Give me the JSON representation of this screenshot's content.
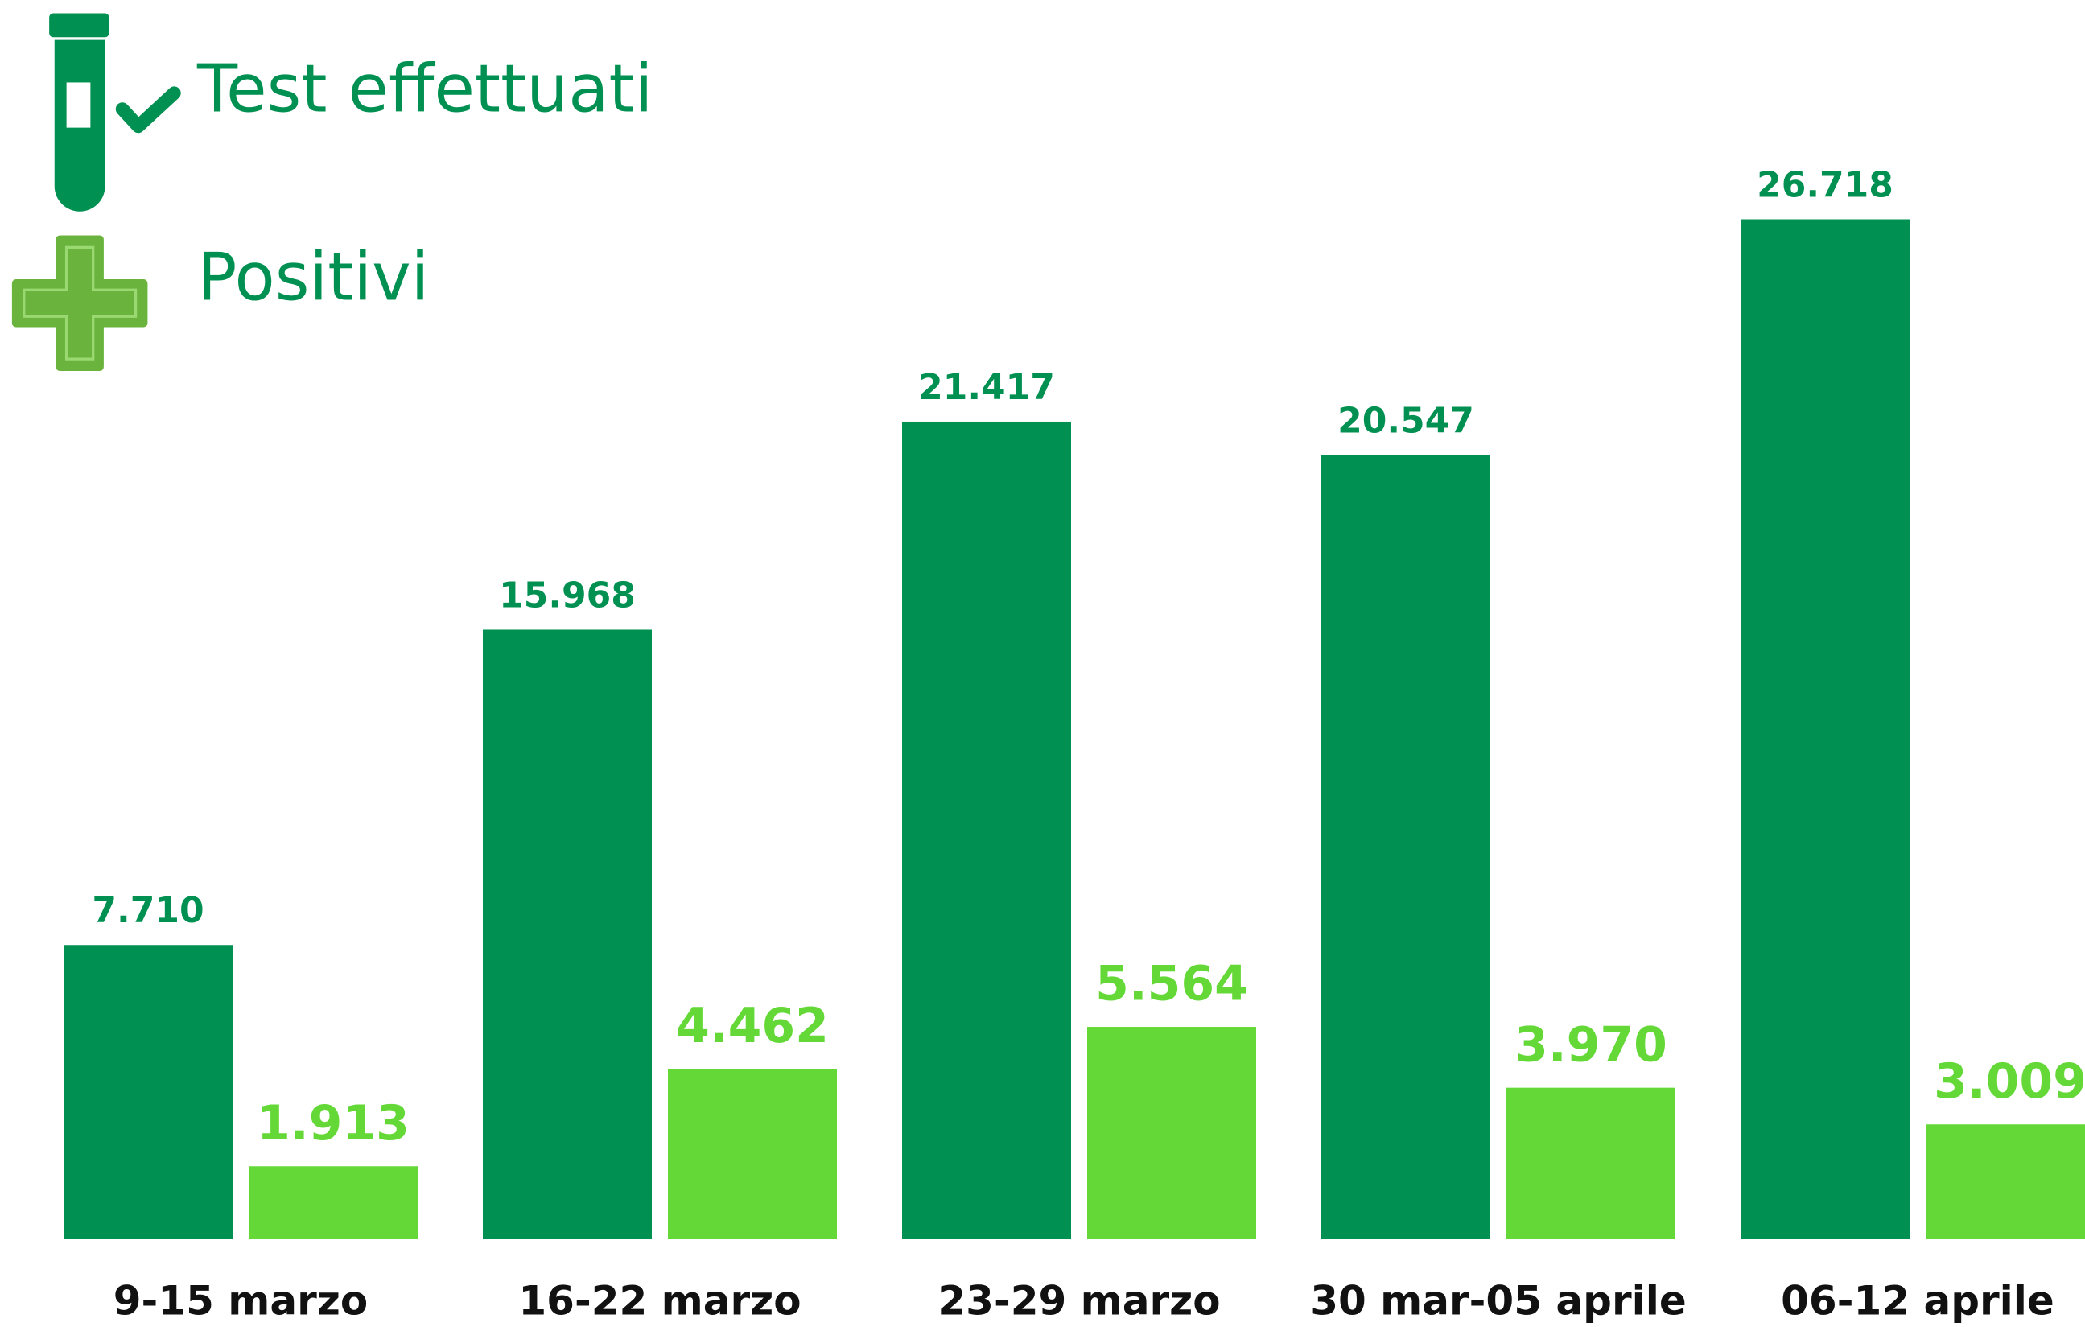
{
  "chart_data": {
    "type": "bar",
    "categories": [
      "9-15 marzo",
      "16-22 marzo",
      "23-29 marzo",
      "30 mar-05 aprile",
      "06-12 aprile"
    ],
    "series": [
      {
        "name": "Test effettuati",
        "color": "#009051",
        "values": [
          7710,
          15968,
          21417,
          20547,
          26718
        ],
        "value_labels": [
          "7.710",
          "15.968",
          "21.417",
          "20.547",
          "26.718"
        ]
      },
      {
        "name": "Positivi",
        "color": "#63d836",
        "values": [
          1913,
          4462,
          5564,
          3970,
          3009
        ],
        "value_labels": [
          "1.913",
          "4.462",
          "5.564",
          "3.970",
          "3.009"
        ]
      }
    ]
  }
}
